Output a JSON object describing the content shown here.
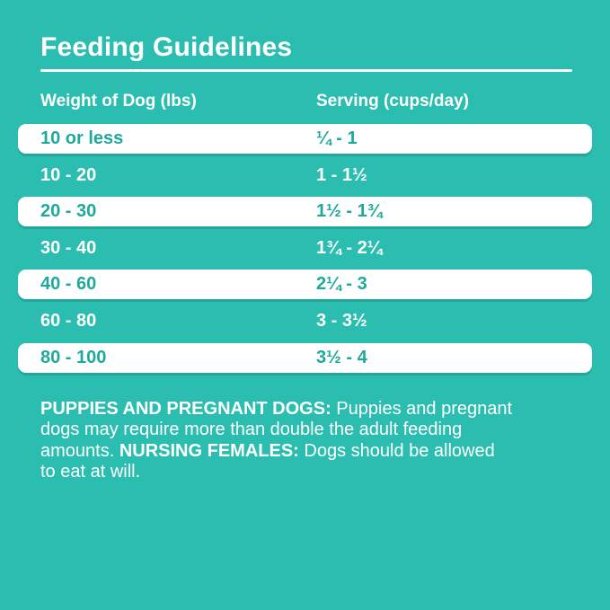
{
  "header": {
    "title": "Feeding Guidelines"
  },
  "table": {
    "columns": [
      "Weight of Dog (lbs)",
      "Serving (cups/day)"
    ],
    "rows": [
      {
        "weight": "10 or less",
        "serving": "¼ - 1"
      },
      {
        "weight": "10 - 20",
        "serving": "1 - 1½"
      },
      {
        "weight": "20 - 30",
        "serving": "1½ - 1¾"
      },
      {
        "weight": "30 - 40",
        "serving": "1¾ - 2¼"
      },
      {
        "weight": "40 - 60",
        "serving": "2¼ - 3"
      },
      {
        "weight": "60 - 80",
        "serving": "3 - 3½"
      },
      {
        "weight": "80 - 100",
        "serving": "3½ - 4"
      }
    ]
  },
  "notes": {
    "lines": [
      {
        "t1": "",
        "b": "PUPPIES AND PREGNANT DOGS:",
        "t2": " Puppies and pregnant"
      },
      {
        "t1": "dogs may require more than double the adult feeding",
        "b": "",
        "t2": ""
      },
      {
        "t1": "amounts. ",
        "b": "NURSING FEMALES:",
        "t2": " Dogs should be allowed"
      },
      {
        "t1": "to eat at will.",
        "b": "",
        "t2": ""
      }
    ]
  },
  "colors": {
    "background": "#2ABDB0",
    "accent_text": "#1FA99B",
    "row_light": "#FFFFFF",
    "text_on_teal": "#FFFFFF"
  }
}
